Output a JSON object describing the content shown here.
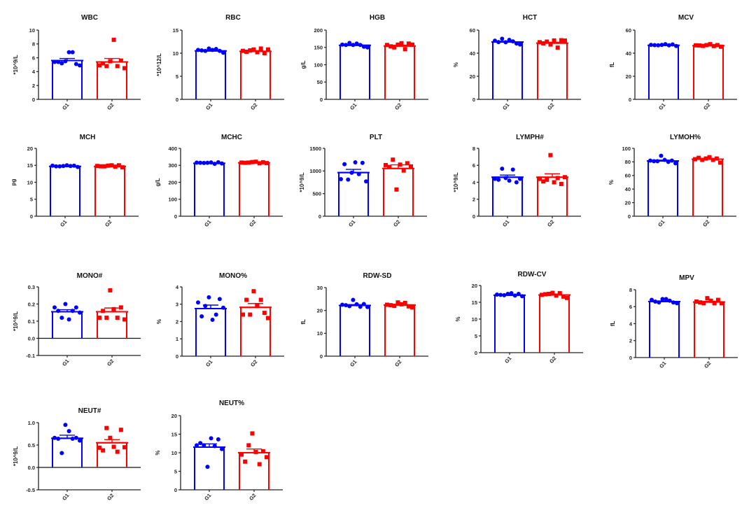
{
  "colors": {
    "g1": "#0000ff",
    "g2": "#ff0000",
    "axis": "#222222"
  },
  "chart_data": [
    {
      "type": "bar",
      "title": "WBC",
      "ylabel": "*10^9/L",
      "categories": [
        "G1",
        "G2"
      ],
      "ylim": [
        0,
        10
      ],
      "yticks": [
        "0",
        "2",
        "4",
        "6",
        "8",
        "10"
      ],
      "tickvals": [
        0,
        2,
        4,
        6,
        8,
        10
      ],
      "series": [
        {
          "name": "G1",
          "mean": 5.6,
          "sem": 0.3,
          "points": [
            5.4,
            5.4,
            5.2,
            5.5,
            6.8,
            6.8,
            5.1,
            4.9
          ],
          "marker": "circle"
        },
        {
          "name": "G2",
          "mean": 5.4,
          "sem": 0.5,
          "points": [
            4.9,
            5.2,
            4.8,
            5.5,
            8.6,
            4.8,
            5.6,
            4.5
          ],
          "marker": "square"
        }
      ]
    },
    {
      "type": "bar",
      "title": "RBC",
      "ylabel": "*10^12/L",
      "categories": [
        "G1",
        "G2"
      ],
      "ylim": [
        0,
        15
      ],
      "yticks": [
        "0",
        "5",
        "10",
        "15"
      ],
      "tickvals": [
        0,
        5,
        10,
        15
      ],
      "series": [
        {
          "name": "G1",
          "mean": 10.5,
          "sem": 0.15,
          "points": [
            10.7,
            10.6,
            10.5,
            11.0,
            10.7,
            10.9,
            10.5,
            10.1
          ],
          "marker": "circle"
        },
        {
          "name": "G2",
          "mean": 10.4,
          "sem": 0.15,
          "points": [
            10.5,
            10.3,
            10.6,
            10.8,
            10.2,
            11.0,
            10.0,
            10.8
          ],
          "marker": "square"
        }
      ]
    },
    {
      "type": "bar",
      "title": "HGB",
      "ylabel": "g/L",
      "categories": [
        "G1",
        "G2"
      ],
      "ylim": [
        0,
        200
      ],
      "yticks": [
        "0",
        "50",
        "100",
        "150",
        "200"
      ],
      "tickvals": [
        0,
        50,
        100,
        150,
        200
      ],
      "series": [
        {
          "name": "G1",
          "mean": 156,
          "sem": 2,
          "points": [
            158,
            157,
            163,
            157,
            161,
            157,
            152,
            150
          ],
          "marker": "circle"
        },
        {
          "name": "G2",
          "mean": 154,
          "sem": 2.5,
          "points": [
            157,
            153,
            150,
            158,
            162,
            145,
            161,
            158
          ],
          "marker": "square"
        }
      ]
    },
    {
      "type": "bar",
      "title": "HCT",
      "ylabel": "%",
      "categories": [
        "G1",
        "G2"
      ],
      "ylim": [
        0,
        60
      ],
      "yticks": [
        "0",
        "20",
        "40",
        "60"
      ],
      "tickvals": [
        0,
        20,
        40,
        60
      ],
      "series": [
        {
          "name": "G1",
          "mean": 49.7,
          "sem": 0.6,
          "points": [
            50.8,
            49.6,
            52.5,
            49.5,
            51.5,
            50.2,
            48.4,
            47.5
          ],
          "marker": "circle"
        },
        {
          "name": "G2",
          "mean": 48.7,
          "sem": 0.8,
          "points": [
            49.5,
            48.5,
            50.0,
            47.5,
            51.0,
            44.8,
            51.2,
            50.9
          ],
          "marker": "square"
        }
      ]
    },
    {
      "type": "bar",
      "title": "MCV",
      "ylabel": "fL",
      "categories": [
        "G1",
        "G2"
      ],
      "ylim": [
        0,
        60
      ],
      "yticks": [
        "0",
        "20",
        "40",
        "60"
      ],
      "tickvals": [
        0,
        20,
        40,
        60
      ],
      "series": [
        {
          "name": "G1",
          "mean": 46.8,
          "sem": 0.3,
          "points": [
            47.2,
            47.0,
            46.8,
            47.2,
            47.8,
            46.8,
            47.6,
            46.2
          ],
          "marker": "circle"
        },
        {
          "name": "G2",
          "mean": 46.5,
          "sem": 0.3,
          "points": [
            46.8,
            46.7,
            46.3,
            47.0,
            47.8,
            46.2,
            47.0,
            45.6
          ],
          "marker": "square"
        }
      ]
    },
    {
      "type": "bar",
      "title": "MCH",
      "ylabel": "pg",
      "categories": [
        "G1",
        "G2"
      ],
      "ylim": [
        0,
        20
      ],
      "yticks": [
        "0",
        "5",
        "10",
        "15",
        "20"
      ],
      "tickvals": [
        0,
        5,
        10,
        15,
        20
      ],
      "series": [
        {
          "name": "G1",
          "mean": 14.7,
          "sem": 0.1,
          "points": [
            14.9,
            14.7,
            14.7,
            14.8,
            15.0,
            14.8,
            14.9,
            14.5
          ],
          "marker": "circle"
        },
        {
          "name": "G2",
          "mean": 14.7,
          "sem": 0.1,
          "points": [
            14.8,
            14.7,
            14.7,
            14.9,
            15.0,
            14.6,
            15.0,
            14.4
          ],
          "marker": "square"
        }
      ]
    },
    {
      "type": "bar",
      "title": "MCHC",
      "ylabel": "g/L",
      "categories": [
        "G1",
        "G2"
      ],
      "ylim": [
        0,
        400
      ],
      "yticks": [
        "0",
        "100",
        "200",
        "300",
        "400"
      ],
      "tickvals": [
        0,
        100,
        200,
        300,
        400
      ],
      "series": [
        {
          "name": "G1",
          "mean": 312,
          "sem": 2,
          "points": [
            316,
            315,
            314,
            315,
            317,
            309,
            318,
            311
          ],
          "marker": "circle"
        },
        {
          "name": "G2",
          "mean": 315,
          "sem": 2,
          "points": [
            316,
            315,
            316,
            319,
            321,
            312,
            318,
            313
          ],
          "marker": "square"
        }
      ]
    },
    {
      "type": "bar",
      "title": "PLT",
      "ylabel": "*10^9/L",
      "categories": [
        "G1",
        "G2"
      ],
      "ylim": [
        0,
        1500
      ],
      "yticks": [
        "0",
        "500",
        "1000",
        "1500"
      ],
      "tickvals": [
        0,
        500,
        1000,
        1500
      ],
      "series": [
        {
          "name": "G1",
          "mean": 965,
          "sem": 70,
          "points": [
            820,
            1150,
            810,
            960,
            1190,
            930,
            1180,
            770
          ],
          "marker": "circle"
        },
        {
          "name": "G2",
          "mean": 1055,
          "sem": 80,
          "points": [
            1130,
            1090,
            1250,
            590,
            1140,
            1010,
            1170,
            1100
          ],
          "marker": "square"
        }
      ]
    },
    {
      "type": "bar",
      "title": "LYMPH#",
      "ylabel": "*10^9/L",
      "categories": [
        "G1",
        "G2"
      ],
      "ylim": [
        0,
        8
      ],
      "yticks": [
        "0",
        "2",
        "4",
        "6",
        "8"
      ],
      "tickvals": [
        0,
        2,
        4,
        6,
        8
      ],
      "series": [
        {
          "name": "G1",
          "mean": 4.6,
          "sem": 0.25,
          "points": [
            4.4,
            4.3,
            5.6,
            4.5,
            4.2,
            5.5,
            4.0,
            4.4
          ],
          "marker": "circle"
        },
        {
          "name": "G2",
          "mean": 4.6,
          "sem": 0.4,
          "points": [
            4.4,
            4.1,
            4.3,
            7.2,
            4.0,
            4.5,
            3.8,
            4.6
          ],
          "marker": "square"
        }
      ]
    },
    {
      "type": "bar",
      "title": "LYMOH%",
      "ylabel": "%",
      "categories": [
        "G1",
        "G2"
      ],
      "ylim": [
        0,
        100
      ],
      "yticks": [
        "0",
        "20",
        "40",
        "60",
        "80",
        "100"
      ],
      "tickvals": [
        0,
        20,
        40,
        60,
        80,
        100
      ],
      "series": [
        {
          "name": "G1",
          "mean": 81.5,
          "sem": 1.2,
          "points": [
            82,
            81,
            81,
            89,
            83,
            80,
            82,
            78
          ],
          "marker": "circle"
        },
        {
          "name": "G2",
          "mean": 84,
          "sem": 1.0,
          "points": [
            84,
            86,
            83,
            85,
            87,
            83,
            85,
            79
          ],
          "marker": "square"
        }
      ]
    },
    {
      "type": "bar",
      "title": "MONO#",
      "ylabel": "*10^9/L",
      "categories": [
        "G1",
        "G2"
      ],
      "ylim": [
        -0.1,
        0.3
      ],
      "yticks": [
        "-0.1",
        "0.0",
        "0.1",
        "0.2",
        "0.3"
      ],
      "tickvals": [
        -0.1,
        0.0,
        0.1,
        0.2,
        0.3
      ],
      "series": [
        {
          "name": "G1",
          "mean": 0.155,
          "sem": 0.012,
          "points": [
            0.18,
            0.16,
            0.12,
            0.2,
            0.11,
            0.16,
            0.18,
            0.15
          ],
          "marker": "circle"
        },
        {
          "name": "G2",
          "mean": 0.155,
          "sem": 0.022,
          "points": [
            0.12,
            0.16,
            0.12,
            0.28,
            0.17,
            0.12,
            0.18,
            0.11
          ],
          "marker": "square"
        }
      ]
    },
    {
      "type": "bar",
      "title": "MONO%",
      "ylabel": "%",
      "categories": [
        "G1",
        "G2"
      ],
      "ylim": [
        0,
        4
      ],
      "yticks": [
        "0",
        "1",
        "2",
        "3",
        "4"
      ],
      "tickvals": [
        0,
        1,
        2,
        3,
        4
      ],
      "series": [
        {
          "name": "G1",
          "mean": 2.75,
          "sem": 0.2,
          "points": [
            3.1,
            2.3,
            2.9,
            3.4,
            2.1,
            2.4,
            3.3,
            2.8
          ],
          "marker": "circle"
        },
        {
          "name": "G2",
          "mean": 2.82,
          "sem": 0.22,
          "points": [
            2.4,
            3.25,
            2.4,
            3.75,
            2.9,
            3.25,
            2.5,
            2.2
          ],
          "marker": "square"
        }
      ]
    },
    {
      "type": "bar",
      "title": "RDW-SD",
      "ylabel": "fL",
      "categories": [
        "G1",
        "G2"
      ],
      "ylim": [
        0,
        30
      ],
      "yticks": [
        "0",
        "10",
        "20",
        "30"
      ],
      "tickvals": [
        0,
        10,
        20,
        30
      ],
      "series": [
        {
          "name": "G1",
          "mean": 22.2,
          "sem": 0.35,
          "points": [
            22.5,
            22.3,
            21.9,
            24.6,
            22.7,
            21.6,
            22.8,
            21.5
          ],
          "marker": "circle"
        },
        {
          "name": "G2",
          "mean": 22.4,
          "sem": 0.3,
          "points": [
            22.5,
            22.3,
            22.0,
            23.5,
            22.7,
            23.3,
            21.8,
            21.3
          ],
          "marker": "square"
        }
      ]
    },
    {
      "type": "bar",
      "title": "RDW-CV",
      "ylabel": "%",
      "categories": [
        "G1",
        "G2"
      ],
      "ylim": [
        0,
        20
      ],
      "yticks": [
        "0",
        "5",
        "10",
        "15",
        "20"
      ],
      "tickvals": [
        0,
        5,
        10,
        15,
        20
      ],
      "series": [
        {
          "name": "G1",
          "mean": 17.1,
          "sem": 0.12,
          "points": [
            17.3,
            17.2,
            17.1,
            17.5,
            17.7,
            17.0,
            17.5,
            16.8
          ],
          "marker": "circle"
        },
        {
          "name": "G2",
          "mean": 17.2,
          "sem": 0.2,
          "points": [
            17.2,
            17.4,
            17.5,
            17.8,
            17.0,
            17.7,
            16.7,
            16.3
          ],
          "marker": "square"
        }
      ]
    },
    {
      "type": "bar",
      "title": "MPV",
      "ylabel": "fL",
      "categories": [
        "G1",
        "G2"
      ],
      "ylim": [
        0,
        8
      ],
      "yticks": [
        "0",
        "2",
        "4",
        "6",
        "8"
      ],
      "tickvals": [
        0,
        2,
        4,
        6,
        8
      ],
      "series": [
        {
          "name": "G1",
          "mean": 6.6,
          "sem": 0.07,
          "points": [
            6.8,
            6.6,
            6.5,
            6.9,
            6.9,
            6.7,
            6.5,
            6.4
          ],
          "marker": "circle"
        },
        {
          "name": "G2",
          "mean": 6.55,
          "sem": 0.08,
          "points": [
            6.6,
            6.5,
            6.4,
            7.0,
            6.7,
            6.4,
            6.8,
            6.4
          ],
          "marker": "square"
        }
      ]
    },
    {
      "type": "bar",
      "title": "NEUT#",
      "ylabel": "*10^9/L",
      "categories": [
        "G1",
        "G2"
      ],
      "ylim": [
        -0.5,
        1.0
      ],
      "yticks": [
        "-0.5",
        "0.0",
        "0.5",
        "1.0"
      ],
      "tickvals": [
        -0.5,
        0.0,
        0.5,
        1.0
      ],
      "series": [
        {
          "name": "G1",
          "mean": 0.65,
          "sem": 0.07,
          "points": [
            0.66,
            0.64,
            0.32,
            0.95,
            0.81,
            0.64,
            0.66,
            0.6
          ],
          "marker": "circle"
        },
        {
          "name": "G2",
          "mean": 0.55,
          "sem": 0.07,
          "points": [
            0.44,
            0.38,
            0.88,
            0.66,
            0.46,
            0.35,
            0.84,
            0.45
          ],
          "marker": "square"
        }
      ]
    },
    {
      "type": "bar",
      "title": "NEUT%",
      "ylabel": "%",
      "categories": [
        "G1",
        "G2"
      ],
      "ylim": [
        0,
        20
      ],
      "yticks": [
        "0",
        "5",
        "10",
        "15",
        "20"
      ],
      "tickvals": [
        0,
        5,
        10,
        15,
        20
      ],
      "series": [
        {
          "name": "G1",
          "mean": 11.5,
          "sem": 0.9,
          "points": [
            12.0,
            12.6,
            12.0,
            6.2,
            13.9,
            11.8,
            13.6,
            11.0
          ],
          "marker": "circle"
        },
        {
          "name": "G2",
          "mean": 10.0,
          "sem": 1.0,
          "points": [
            9.5,
            7.6,
            12.0,
            15.2,
            10.2,
            6.9,
            10.4,
            8.8
          ],
          "marker": "square"
        }
      ]
    }
  ]
}
